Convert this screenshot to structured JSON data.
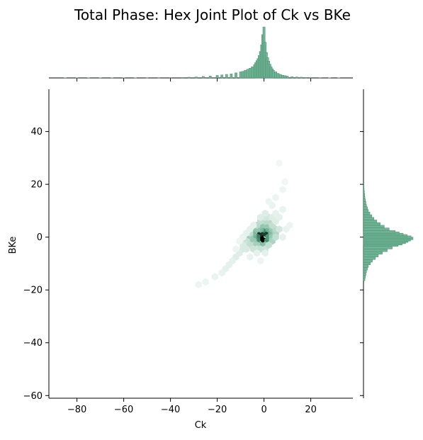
{
  "chart_data": {
    "type": "hexbin",
    "title": "Total Phase: Hex Joint Plot of Ck vs BKe",
    "xlabel": "Ck",
    "ylabel": "BKe",
    "xlim": [
      -92,
      38
    ],
    "ylim": [
      -61,
      56
    ],
    "xticks": [
      -80,
      -60,
      -40,
      -20,
      0,
      20
    ],
    "xtick_labels": [
      "−80",
      "−60",
      "−40",
      "−20",
      "0",
      "20"
    ],
    "yticks": [
      -60,
      -40,
      -20,
      0,
      20,
      40
    ],
    "ytick_labels": [
      "−60",
      "−40",
      "−20",
      "0",
      "20",
      "40"
    ],
    "grid": false,
    "color": "#4c9e7a",
    "dark_color": "#000000",
    "hex_cells": [
      {
        "x": -1.5,
        "y": 0,
        "density": 1.0
      },
      {
        "x": 0,
        "y": -1.5,
        "density": 1.0
      },
      {
        "x": -1.5,
        "y": 1.5,
        "density": 0.85
      },
      {
        "x": 0.5,
        "y": 1.5,
        "density": 0.8
      },
      {
        "x": -3,
        "y": 0,
        "density": 0.6
      },
      {
        "x": 1.5,
        "y": -1.5,
        "density": 0.55
      },
      {
        "x": 0,
        "y": 3,
        "density": 0.55
      },
      {
        "x": -3,
        "y": -1.5,
        "density": 0.55
      },
      {
        "x": 2,
        "y": 0,
        "density": 0.5
      },
      {
        "x": -4.5,
        "y": 0,
        "density": 0.35
      },
      {
        "x": -4.5,
        "y": 1.5,
        "density": 0.3
      },
      {
        "x": 3.5,
        "y": 1.5,
        "density": 0.3
      },
      {
        "x": -1.5,
        "y": 3,
        "density": 0.3
      },
      {
        "x": 2,
        "y": 3,
        "density": 0.35
      },
      {
        "x": -1.5,
        "y": -3,
        "density": 0.3
      },
      {
        "x": 0.5,
        "y": -3,
        "density": 0.25
      },
      {
        "x": -1.5,
        "y": 4.5,
        "density": 0.22
      },
      {
        "x": 0.5,
        "y": 4.5,
        "density": 0.2
      },
      {
        "x": 2,
        "y": 4.5,
        "density": 0.2
      },
      {
        "x": 3.5,
        "y": 3,
        "density": 0.2
      },
      {
        "x": -3,
        "y": 3,
        "density": 0.22
      },
      {
        "x": -6,
        "y": 0,
        "density": 0.18
      },
      {
        "x": -6,
        "y": -1.5,
        "density": 0.16
      },
      {
        "x": -4.5,
        "y": -1.5,
        "density": 0.2
      },
      {
        "x": -4.5,
        "y": -3,
        "density": 0.14
      },
      {
        "x": -3,
        "y": -3,
        "density": 0.16
      },
      {
        "x": 3.5,
        "y": 0,
        "density": 0.2
      },
      {
        "x": 3.5,
        "y": -1.5,
        "density": 0.14
      },
      {
        "x": 5,
        "y": 1.5,
        "density": 0.13
      },
      {
        "x": 5,
        "y": 3,
        "density": 0.1
      },
      {
        "x": 0.5,
        "y": 6,
        "density": 0.1
      },
      {
        "x": 2,
        "y": 6,
        "density": 0.1
      },
      {
        "x": -1.5,
        "y": 6,
        "density": 0.08
      },
      {
        "x": -3,
        "y": 4.5,
        "density": 0.1
      },
      {
        "x": -6,
        "y": 1.5,
        "density": 0.09
      },
      {
        "x": -7.5,
        "y": -1.5,
        "density": 0.07
      },
      {
        "x": -7.5,
        "y": -3,
        "density": 0.06
      },
      {
        "x": -6,
        "y": -3,
        "density": 0.08
      },
      {
        "x": -4.5,
        "y": -4.5,
        "density": 0.06
      },
      {
        "x": -3,
        "y": -4.5,
        "density": 0.06
      },
      {
        "x": -1.5,
        "y": -4.5,
        "density": 0.07
      },
      {
        "x": 0.5,
        "y": -4.5,
        "density": 0.06
      },
      {
        "x": 2,
        "y": -3,
        "density": 0.08
      },
      {
        "x": 5,
        "y": 0,
        "density": 0.08
      },
      {
        "x": 6.5,
        "y": 3,
        "density": 0.05
      },
      {
        "x": 3.5,
        "y": 4.5,
        "density": 0.08
      },
      {
        "x": 0.5,
        "y": 7.5,
        "density": 0.05
      },
      {
        "x": 2,
        "y": 7.5,
        "density": 0.05
      },
      {
        "x": -9,
        "y": -3,
        "density": 0.04
      },
      {
        "x": -9,
        "y": -4.5,
        "density": 0.04
      },
      {
        "x": -7.5,
        "y": -4.5,
        "density": 0.04
      },
      {
        "x": -10.5,
        "y": -6,
        "density": 0.03
      },
      {
        "x": -12,
        "y": -7.5,
        "density": 0.03
      },
      {
        "x": -13.5,
        "y": -9,
        "density": 0.02
      },
      {
        "x": -15,
        "y": -10.5,
        "density": 0.02
      },
      {
        "x": -16.5,
        "y": -12,
        "density": 0.02
      },
      {
        "x": -18,
        "y": -13.5,
        "density": 0.015
      },
      {
        "x": -21,
        "y": -15,
        "density": 0.015
      },
      {
        "x": -25,
        "y": -17,
        "density": 0.012
      },
      {
        "x": -28,
        "y": -18,
        "density": 0.012
      },
      {
        "x": 5,
        "y": 6,
        "density": 0.03
      },
      {
        "x": 3.5,
        "y": 7.5,
        "density": 0.03
      },
      {
        "x": 0.5,
        "y": 9,
        "density": 0.03
      },
      {
        "x": -1.5,
        "y": 7.5,
        "density": 0.03
      },
      {
        "x": 6.5,
        "y": 7.5,
        "density": 0.02
      },
      {
        "x": 5,
        "y": 9,
        "density": 0.02
      },
      {
        "x": 8,
        "y": 10.5,
        "density": 0.015
      },
      {
        "x": 3.5,
        "y": 12,
        "density": 0.015
      },
      {
        "x": 2,
        "y": 13.5,
        "density": 0.012
      },
      {
        "x": 5,
        "y": 15,
        "density": 0.012
      },
      {
        "x": 8,
        "y": 18,
        "density": 0.01
      },
      {
        "x": 9,
        "y": 21,
        "density": 0.008
      },
      {
        "x": 6.5,
        "y": 28,
        "density": 0.008
      },
      {
        "x": 8,
        "y": 0,
        "density": 0.02
      },
      {
        "x": 9.5,
        "y": 3,
        "density": 0.015
      },
      {
        "x": 11,
        "y": 4.5,
        "density": 0.012
      },
      {
        "x": -3,
        "y": -6,
        "density": 0.02
      },
      {
        "x": 0.5,
        "y": -6,
        "density": 0.02
      },
      {
        "x": -6,
        "y": -7.5,
        "density": 0.015
      },
      {
        "x": -1.5,
        "y": -9,
        "density": 0.012
      },
      {
        "x": -9,
        "y": 0,
        "density": 0.015
      },
      {
        "x": -10.5,
        "y": -1.5,
        "density": 0.012
      },
      {
        "x": -12,
        "y": -4.5,
        "density": 0.012
      },
      {
        "x": -6,
        "y": 3,
        "density": 0.02
      },
      {
        "x": -4.5,
        "y": 4.5,
        "density": 0.02
      },
      {
        "x": -7.5,
        "y": 1.5,
        "density": 0.02
      }
    ],
    "x_marginal": {
      "bin_centers": [
        -85,
        -80,
        -75,
        -70,
        -65,
        -60,
        -55,
        -50,
        -45,
        -40,
        -35,
        -32,
        -29,
        -26,
        -23,
        -20,
        -18,
        -16,
        -14,
        -12,
        -10,
        -9,
        -8,
        -7,
        -6,
        -5,
        -4,
        -3.5,
        -3,
        -2.5,
        -2,
        -1.5,
        -1,
        -0.5,
        0,
        0.5,
        1,
        1.5,
        2,
        2.5,
        3,
        3.5,
        4,
        5,
        6,
        7,
        8,
        9,
        10,
        12,
        14,
        16,
        18,
        20,
        24,
        28,
        32
      ],
      "bin_width": 1,
      "counts": [
        0.3,
        0.3,
        0.3,
        0.3,
        0.3,
        0.4,
        0.4,
        0.5,
        0.6,
        0.7,
        1,
        1.5,
        2,
        3,
        4,
        5,
        6,
        7,
        8,
        10,
        12,
        13,
        15,
        17,
        19,
        22,
        26,
        30,
        34,
        38,
        44,
        52,
        65,
        85,
        100,
        70,
        50,
        40,
        33,
        27,
        22,
        18,
        15,
        12,
        9,
        7,
        5.5,
        4.5,
        3.5,
        2.5,
        2,
        1.5,
        1,
        0.8,
        0.6,
        0.4,
        0.3
      ]
    },
    "y_marginal": {
      "bin_centers": [
        -16,
        -15,
        -14,
        -13,
        -12,
        -11,
        -10,
        -9,
        -8,
        -7,
        -6,
        -5,
        -4,
        -3,
        -2.5,
        -2,
        -1.5,
        -1,
        -0.5,
        0,
        0.5,
        1,
        1.5,
        2,
        3,
        4,
        5,
        6,
        7,
        8,
        9,
        10,
        11,
        12,
        13,
        14,
        15,
        16,
        17,
        18,
        19,
        20
      ],
      "bin_height": 1,
      "counts": [
        3,
        4,
        5,
        6,
        8,
        10,
        14,
        18,
        24,
        30,
        38,
        48,
        58,
        70,
        78,
        85,
        90,
        95,
        100,
        96,
        88,
        80,
        72,
        64,
        52,
        42,
        34,
        27,
        21,
        17,
        13,
        10,
        8,
        6,
        5,
        4,
        3,
        2.5,
        2,
        1.5,
        1.2,
        1
      ]
    }
  }
}
